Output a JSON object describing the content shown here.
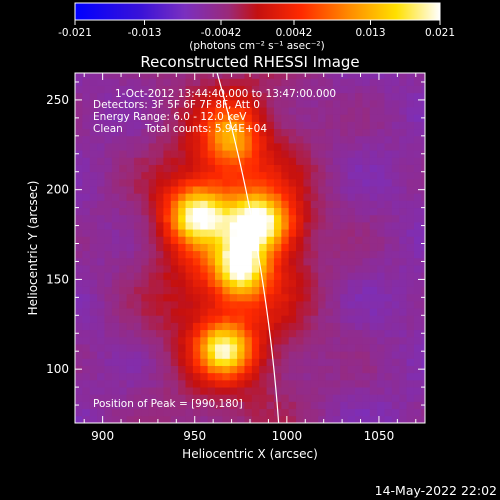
{
  "colorbar": {
    "ticks": [
      "-0.021",
      "-0.013",
      "-0.0042",
      "0.0042",
      "0.013",
      "0.021"
    ],
    "units": "(photons cm⁻² s⁻¹ asec⁻²)",
    "min": -0.021,
    "max": 0.021
  },
  "info": {
    "time_line": "1-Oct-2012 13:44:40.000 to 13:47:00.000",
    "detectors_line": "Detectors: 3F 5F 6F 7F 8F, Att 0",
    "energy_line": "Energy Range: 6.0 - 12.0 keV",
    "clean_label": "Clean",
    "counts_line": "Total counts: 5.94E+04",
    "peak_line": "Position of Peak = [990,180]"
  },
  "footer": {
    "date": "14-May-2022 22:02"
  },
  "chart_data": {
    "type": "heatmap",
    "title": "Reconstructed RHESSI Image",
    "xlabel": "Heliocentric X (arcsec)",
    "ylabel": "Heliocentric Y (arcsec)",
    "xlim": [
      885,
      1075
    ],
    "ylim": [
      70,
      265
    ],
    "xticks": [
      "900",
      "950",
      "1000",
      "1050"
    ],
    "yticks": [
      "100",
      "150",
      "200",
      "250"
    ],
    "sources": [
      {
        "x": 951,
        "y": 186,
        "amplitude": 0.019,
        "sigma_x": 11,
        "sigma_y": 11
      },
      {
        "x": 985,
        "y": 182,
        "amplitude": 0.021,
        "sigma_x": 12,
        "sigma_y": 11
      },
      {
        "x": 975,
        "y": 157,
        "amplitude": 0.0185,
        "sigma_x": 10,
        "sigma_y": 11
      },
      {
        "x": 966,
        "y": 111,
        "amplitude": 0.0185,
        "sigma_x": 10,
        "sigma_y": 10
      },
      {
        "x": 970,
        "y": 230,
        "amplitude": 0.012,
        "sigma_x": 10,
        "sigma_y": 12
      },
      {
        "x": 970,
        "y": 170,
        "amplitude": 0.011,
        "sigma_x": 30,
        "sigma_y": 65
      }
    ],
    "limb": {
      "solar_radius_arcsec": 998,
      "center": [
        0,
        0
      ]
    },
    "colormap": [
      "#0000ff",
      "#3f00c8",
      "#5a0f8e",
      "#6a1f8e",
      "#ff0000",
      "#ff6a00",
      "#ffd200",
      "#ffffff"
    ]
  }
}
